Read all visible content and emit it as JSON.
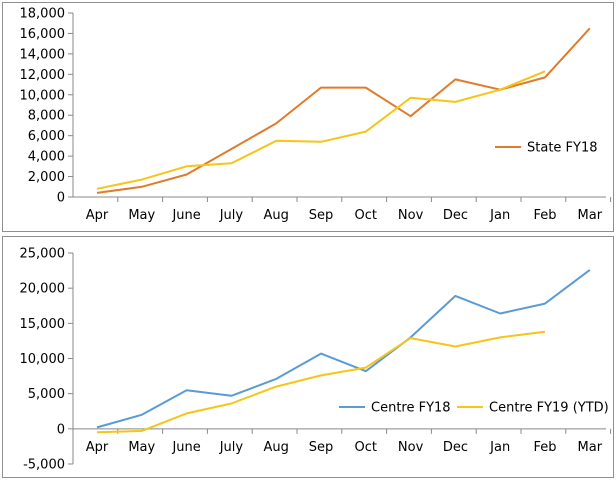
{
  "chart_data": [
    {
      "type": "line",
      "categories": [
        "Apr",
        "May",
        "June",
        "July",
        "Aug",
        "Sep",
        "Oct",
        "Nov",
        "Dec",
        "Jan",
        "Feb",
        "Mar"
      ],
      "y_ticks": [
        "0",
        "2,000",
        "4,000",
        "6,000",
        "8,000",
        "10,000",
        "12,000",
        "14,000",
        "16,000",
        "18,000"
      ],
      "ylim": [
        0,
        18000
      ],
      "grid": false,
      "legend_position": "right",
      "series": [
        {
          "name": "State FY18",
          "color": "#e07b2c",
          "values": [
            400,
            1000,
            2200,
            4700,
            7200,
            10700,
            10700,
            7900,
            11500,
            10500,
            11700,
            16500
          ]
        },
        {
          "name": "",
          "color": "#f5c518",
          "values": [
            800,
            1700,
            3000,
            3300,
            5500,
            5400,
            6400,
            9700,
            9300,
            10500,
            12300,
            null
          ]
        }
      ]
    },
    {
      "type": "line",
      "categories": [
        "Apr",
        "May",
        "June",
        "July",
        "Aug",
        "Sep",
        "Oct",
        "Nov",
        "Dec",
        "Jan",
        "Feb",
        "Mar"
      ],
      "y_ticks": [
        "-5,000",
        "0",
        "5,000",
        "10,000",
        "15,000",
        "20,000",
        "25,000"
      ],
      "ylim": [
        -5000,
        25000
      ],
      "grid": false,
      "legend_position": "right",
      "series": [
        {
          "name": "Centre FY18",
          "color": "#5a9bd5",
          "values": [
            200,
            2000,
            5500,
            4700,
            7100,
            10700,
            8200,
            13000,
            18900,
            16400,
            17800,
            22600
          ]
        },
        {
          "name": "Centre FY19 (YTD)",
          "color": "#f5c518",
          "values": [
            -500,
            -300,
            2200,
            3600,
            6000,
            7600,
            8700,
            12900,
            11700,
            13000,
            13800,
            null
          ]
        }
      ]
    }
  ]
}
